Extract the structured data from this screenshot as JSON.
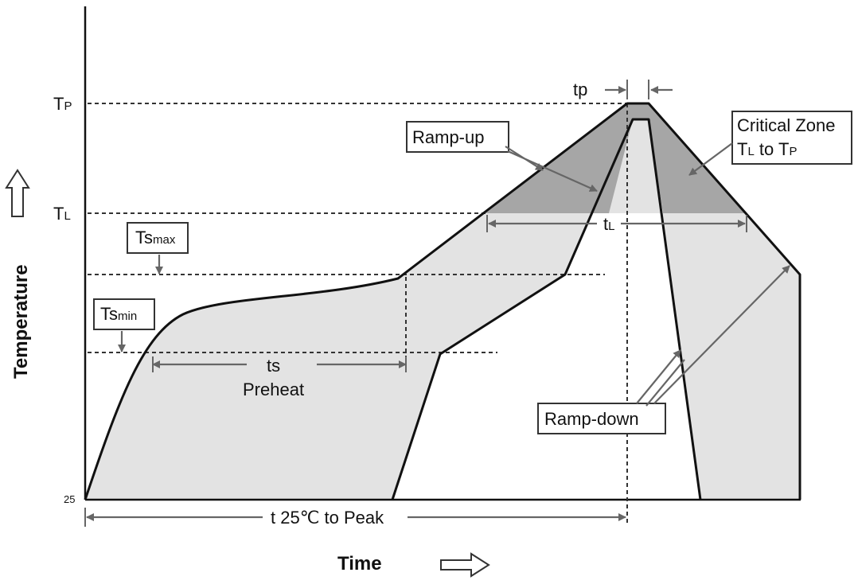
{
  "axes": {
    "y_title": "Temperature",
    "x_title": "Time",
    "y_origin_label": "25",
    "tp_label": "T",
    "tp_sub": "P",
    "tl_label": "T",
    "tl_sub": "L"
  },
  "labels": {
    "ts_max_main": "Ts",
    "ts_max_sub": "max",
    "ts_min_main": "Ts",
    "ts_min_sub": "min",
    "ramp_up": "Ramp-up",
    "ramp_down": "Ramp-down",
    "critical_zone_line1": "Critical Zone",
    "critical_zone_t1": "T",
    "critical_zone_sub1": "L",
    "critical_zone_to": " to ",
    "critical_zone_t2": "T",
    "critical_zone_sub2": "P",
    "tp_time": "tp",
    "tl_time_main": "t",
    "tl_time_sub": "L",
    "ts_time": "ts",
    "preheat": "Preheat",
    "t25_to_peak": "t 25℃ to Peak"
  },
  "colors": {
    "light_fill": "#e3e3e3",
    "critical_fill": "#a6a6a6",
    "curve": "#111111",
    "annotation_arrow": "#666666"
  }
}
